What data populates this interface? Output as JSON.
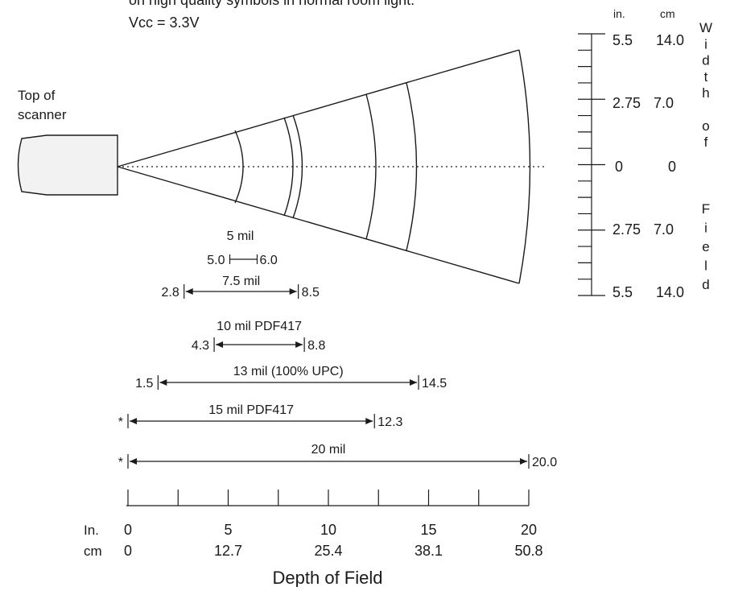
{
  "header": {
    "line1": "on high quality symbols in normal room light.",
    "line2": "Vcc = 3.3V"
  },
  "scanner": {
    "label_line1": "Top of",
    "label_line2": "scanner"
  },
  "width_scale": {
    "unit_in": "in.",
    "unit_cm": "cm",
    "rows": [
      {
        "in": "5.5",
        "cm": "14.0"
      },
      {
        "in": "2.75",
        "cm": "7.0"
      },
      {
        "in": "0",
        "cm": "0"
      },
      {
        "in": "2.75",
        "cm": "7.0"
      },
      {
        "in": "5.5",
        "cm": "14.0"
      }
    ],
    "vertical_label_top": [
      "W",
      "i",
      "d",
      "t",
      "h",
      "",
      "o",
      "f"
    ],
    "vertical_label_bottom": [
      "F",
      "i",
      "e",
      "l",
      "d"
    ]
  },
  "ranges": [
    {
      "name": "5 mil",
      "start_label": "5.0",
      "end_label": "6.0",
      "start": 5.0,
      "end": 6.0
    },
    {
      "name": "7.5 mil",
      "start_label": "2.8",
      "end_label": "8.5",
      "start": 2.8,
      "end": 8.5
    },
    {
      "name": "10 mil PDF417",
      "start_label": "4.3",
      "end_label": "8.8",
      "start": 4.3,
      "end": 8.8
    },
    {
      "name": "13 mil (100% UPC)",
      "start_label": "1.5",
      "end_label": "14.5",
      "start": 1.5,
      "end": 14.5
    },
    {
      "name": "15 mil PDF417",
      "start_label": "*",
      "end_label": "12.3",
      "start": 0,
      "end": 12.3
    },
    {
      "name": "20 mil",
      "start_label": "*",
      "end_label": "20.0",
      "start": 0,
      "end": 20.0
    }
  ],
  "depth_axis": {
    "in_label": "In.",
    "cm_label": "cm",
    "ticks_in": [
      "0",
      "5",
      "10",
      "15",
      "20"
    ],
    "ticks_cm": [
      "0",
      "12.7",
      "25.4",
      "38.1",
      "50.8"
    ],
    "title": "Depth of Field"
  }
}
